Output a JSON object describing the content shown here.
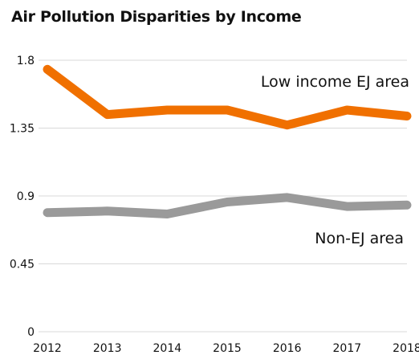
{
  "chart_data": {
    "type": "line",
    "title": "Air Pollution Disparities by Income",
    "x": [
      "2012",
      "2013",
      "2014",
      "2015",
      "2016",
      "2017",
      "2018"
    ],
    "ylim": [
      0,
      1.8
    ],
    "yticks": [
      "0",
      "0.45",
      "0.9",
      "1.35",
      "1.8"
    ],
    "grid": true,
    "series": [
      {
        "name": "Low income EJ area",
        "color": "#f07000",
        "values": [
          1.74,
          1.44,
          1.47,
          1.47,
          1.37,
          1.47,
          1.43
        ]
      },
      {
        "name": "Non-EJ area",
        "color": "#9a9a9a",
        "values": [
          0.79,
          0.8,
          0.78,
          0.86,
          0.89,
          0.83,
          0.84
        ]
      }
    ]
  }
}
